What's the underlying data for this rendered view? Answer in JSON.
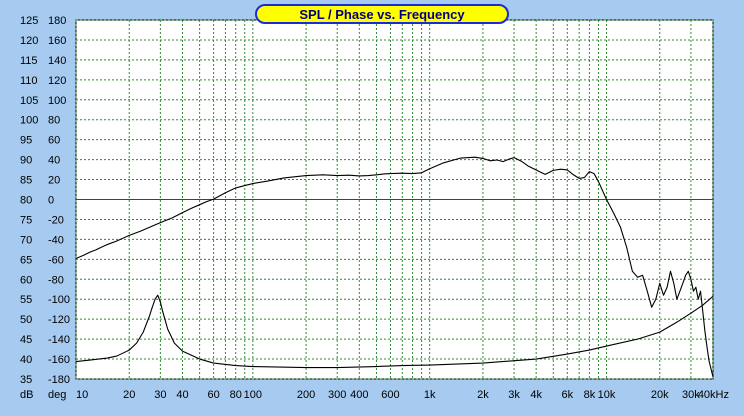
{
  "chart_data": {
    "type": "line",
    "title": "SPL / Phase vs. Frequency",
    "x_scale": "log",
    "xlim": [
      10,
      40000
    ],
    "x_ticks": [
      {
        "value": 10,
        "label": "10"
      },
      {
        "value": 20,
        "label": "20"
      },
      {
        "value": 30,
        "label": "30"
      },
      {
        "value": 40,
        "label": "40"
      },
      {
        "value": 60,
        "label": "60"
      },
      {
        "value": 80,
        "label": "80"
      },
      {
        "value": 100,
        "label": "100"
      },
      {
        "value": 200,
        "label": "200"
      },
      {
        "value": 300,
        "label": "300"
      },
      {
        "value": 400,
        "label": "400"
      },
      {
        "value": 600,
        "label": "600"
      },
      {
        "value": 1000,
        "label": "1k"
      },
      {
        "value": 2000,
        "label": "2k"
      },
      {
        "value": 3000,
        "label": "3k"
      },
      {
        "value": 4000,
        "label": "4k"
      },
      {
        "value": 6000,
        "label": "6k"
      },
      {
        "value": 8000,
        "label": "8k"
      },
      {
        "value": 10000,
        "label": "10k"
      },
      {
        "value": 20000,
        "label": "20k"
      },
      {
        "value": 30000,
        "label": "30k"
      },
      {
        "value": 40000,
        "label": "40kHz"
      }
    ],
    "y_left": {
      "unit_label": "dB",
      "ylim": [
        35,
        125
      ],
      "ticks": [
        125,
        120,
        115,
        110,
        105,
        100,
        95,
        90,
        85,
        80,
        75,
        70,
        65,
        60,
        55,
        50,
        45,
        40,
        35
      ]
    },
    "y_right": {
      "unit_label": "deg",
      "ylim": [
        -180,
        180
      ],
      "ticks": [
        180,
        160,
        140,
        120,
        100,
        80,
        60,
        40,
        20,
        0,
        -20,
        -40,
        -60,
        -80,
        -100,
        -120,
        -140,
        -160,
        -180
      ]
    },
    "grid": true,
    "reference_line": {
      "axis": "phase",
      "value": 0,
      "color": "#e00000"
    },
    "series": [
      {
        "axis": "left",
        "color": "#000000",
        "points": [
          [
            10,
            65.2
          ],
          [
            11,
            66
          ],
          [
            12,
            66.8
          ],
          [
            13,
            67.4
          ],
          [
            14,
            68.1
          ],
          [
            15,
            68.7
          ],
          [
            17,
            69.6
          ],
          [
            20,
            71
          ],
          [
            23,
            72
          ],
          [
            25,
            72.7
          ],
          [
            30,
            74.2
          ],
          [
            35,
            75.4
          ],
          [
            40,
            76.7
          ],
          [
            45,
            77.8
          ],
          [
            50,
            78.7
          ],
          [
            55,
            79.5
          ],
          [
            60,
            80.1
          ],
          [
            70,
            81.7
          ],
          [
            80,
            82.9
          ],
          [
            90,
            83.5
          ],
          [
            100,
            84
          ],
          [
            120,
            84.6
          ],
          [
            150,
            85.4
          ],
          [
            200,
            86
          ],
          [
            250,
            86.2
          ],
          [
            300,
            86
          ],
          [
            350,
            86.1
          ],
          [
            400,
            85.9
          ],
          [
            450,
            86
          ],
          [
            500,
            86.2
          ],
          [
            550,
            86.4
          ],
          [
            600,
            86.5
          ],
          [
            700,
            86.6
          ],
          [
            800,
            86.5
          ],
          [
            900,
            86.7
          ],
          [
            1000,
            87.7
          ],
          [
            1200,
            89.2
          ],
          [
            1500,
            90.4
          ],
          [
            1800,
            90.6
          ],
          [
            2000,
            90.3
          ],
          [
            2200,
            89.7
          ],
          [
            2400,
            89.9
          ],
          [
            2600,
            89.5
          ],
          [
            2800,
            90.1
          ],
          [
            3000,
            90.5
          ],
          [
            3300,
            89.6
          ],
          [
            3600,
            88.4
          ],
          [
            4000,
            87.4
          ],
          [
            4500,
            86.3
          ],
          [
            5000,
            87.3
          ],
          [
            5500,
            87.6
          ],
          [
            6000,
            87.4
          ],
          [
            6500,
            86.2
          ],
          [
            7000,
            85.3
          ],
          [
            7500,
            85.5
          ],
          [
            8000,
            87
          ],
          [
            8500,
            86.5
          ],
          [
            9000,
            84.5
          ],
          [
            10000,
            80
          ],
          [
            11000,
            76.5
          ],
          [
            12000,
            73
          ],
          [
            13000,
            68
          ],
          [
            14000,
            62
          ],
          [
            15000,
            60.5
          ],
          [
            16000,
            61
          ],
          [
            17000,
            57
          ],
          [
            18000,
            53
          ],
          [
            19000,
            55
          ],
          [
            20000,
            59
          ],
          [
            21000,
            56
          ],
          [
            22000,
            58
          ],
          [
            23000,
            62
          ],
          [
            24000,
            59
          ],
          [
            25000,
            55
          ],
          [
            26000,
            57
          ],
          [
            27000,
            59
          ],
          [
            28000,
            61
          ],
          [
            29000,
            62
          ],
          [
            30000,
            60
          ],
          [
            31000,
            57
          ],
          [
            32000,
            58
          ],
          [
            33000,
            55
          ],
          [
            34000,
            57
          ],
          [
            35000,
            52
          ],
          [
            36000,
            47
          ],
          [
            37000,
            43
          ],
          [
            38000,
            39.5
          ],
          [
            39000,
            37.5
          ],
          [
            40000,
            35.5
          ]
        ]
      },
      {
        "axis": "right",
        "color": "#000000",
        "points": [
          [
            10,
            -162.5
          ],
          [
            12,
            -161
          ],
          [
            15,
            -159
          ],
          [
            17,
            -157
          ],
          [
            20,
            -151
          ],
          [
            22,
            -144
          ],
          [
            24,
            -133
          ],
          [
            26,
            -117
          ],
          [
            27,
            -108
          ],
          [
            28,
            -100
          ],
          [
            29,
            -96
          ],
          [
            30,
            -103
          ],
          [
            31,
            -113
          ],
          [
            33,
            -130
          ],
          [
            36,
            -144
          ],
          [
            40,
            -152
          ],
          [
            50,
            -160
          ],
          [
            60,
            -164
          ],
          [
            80,
            -166.5
          ],
          [
            100,
            -167.5
          ],
          [
            200,
            -168.5
          ],
          [
            300,
            -168.5
          ],
          [
            500,
            -167.5
          ],
          [
            700,
            -166.5
          ],
          [
            1000,
            -166
          ],
          [
            2000,
            -164
          ],
          [
            4000,
            -160
          ],
          [
            6000,
            -155
          ],
          [
            8000,
            -151
          ],
          [
            10000,
            -147
          ],
          [
            15000,
            -140
          ],
          [
            20000,
            -133
          ],
          [
            25000,
            -123
          ],
          [
            30000,
            -114
          ],
          [
            35000,
            -106
          ],
          [
            40000,
            -97
          ]
        ]
      }
    ]
  }
}
